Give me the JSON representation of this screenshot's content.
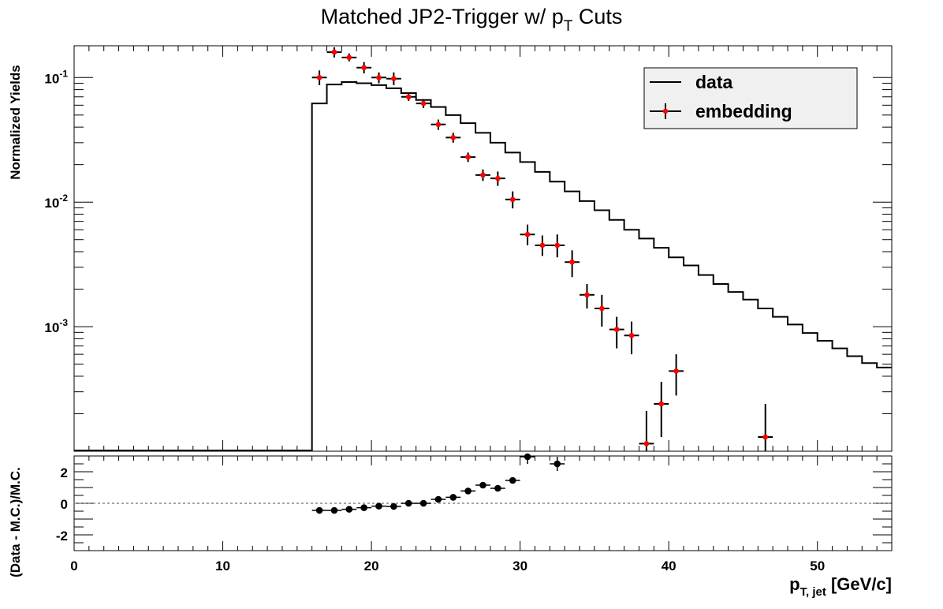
{
  "chart_data": [
    {
      "type": "line",
      "title": "Matched JP2-Trigger w/ p_T Cuts",
      "title_main": "Matched JP2-Trigger w/ p",
      "title_sub": "T",
      "title_tail": " Cuts",
      "ylabel": "Normalized Yields",
      "xlim": [
        0,
        55
      ],
      "ylim": [
        0.0001,
        0.18
      ],
      "yscale": "log",
      "grid": false,
      "legend_position": "top-right",
      "y_ticks": [
        {
          "value": 0.1,
          "base": "10",
          "exp": "-1"
        },
        {
          "value": 0.01,
          "base": "10",
          "exp": "-2"
        },
        {
          "value": 0.001,
          "base": "10",
          "exp": "-3"
        }
      ],
      "series": [
        {
          "name": "data",
          "style": "step",
          "color": "#000000",
          "bin_edges": [
            0,
            1,
            2,
            3,
            4,
            5,
            6,
            7,
            8,
            9,
            10,
            11,
            12,
            13,
            14,
            15,
            16,
            17,
            18,
            19,
            20,
            21,
            22,
            23,
            24,
            25,
            26,
            27,
            28,
            29,
            30,
            31,
            32,
            33,
            34,
            35,
            36,
            37,
            38,
            39,
            40,
            41,
            42,
            43,
            44,
            45,
            46,
            47,
            48,
            49,
            50,
            51,
            52,
            53,
            54,
            55
          ],
          "values": [
            0.0001,
            0.0001,
            0.0001,
            0.0001,
            0.0001,
            0.0001,
            0.0001,
            0.0001,
            0.0001,
            0.0001,
            0.0001,
            0.0001,
            0.0001,
            0.0001,
            0.0001,
            0.0001,
            0.062,
            0.088,
            0.092,
            0.09,
            0.087,
            0.082,
            0.075,
            0.066,
            0.058,
            0.05,
            0.043,
            0.036,
            0.03,
            0.025,
            0.021,
            0.0175,
            0.0146,
            0.0122,
            0.0102,
            0.0086,
            0.0072,
            0.006,
            0.0051,
            0.0043,
            0.0036,
            0.0031,
            0.0026,
            0.0022,
            0.0019,
            0.00165,
            0.0014,
            0.0012,
            0.00104,
            0.00089,
            0.00077,
            0.00067,
            0.00058,
            0.00051,
            0.00047
          ]
        },
        {
          "name": "embedding",
          "style": "markers",
          "color": "#ff0000",
          "points": [
            {
              "x": 16.5,
              "y": 0.1,
              "lo": 0.087,
              "hi": 0.114
            },
            {
              "x": 17.5,
              "y": 0.16,
              "lo": 0.145,
              "hi": 0.175
            },
            {
              "x": 18.5,
              "y": 0.145,
              "lo": 0.135,
              "hi": 0.156
            },
            {
              "x": 19.5,
              "y": 0.12,
              "lo": 0.108,
              "hi": 0.133
            },
            {
              "x": 20.5,
              "y": 0.1,
              "lo": 0.09,
              "hi": 0.11
            },
            {
              "x": 21.5,
              "y": 0.098,
              "lo": 0.087,
              "hi": 0.11
            },
            {
              "x": 22.5,
              "y": 0.07,
              "lo": 0.065,
              "hi": 0.075
            },
            {
              "x": 23.5,
              "y": 0.062,
              "lo": 0.057,
              "hi": 0.067
            },
            {
              "x": 24.5,
              "y": 0.042,
              "lo": 0.038,
              "hi": 0.046
            },
            {
              "x": 25.5,
              "y": 0.033,
              "lo": 0.03,
              "hi": 0.036
            },
            {
              "x": 26.5,
              "y": 0.023,
              "lo": 0.021,
              "hi": 0.025
            },
            {
              "x": 27.5,
              "y": 0.0165,
              "lo": 0.0148,
              "hi": 0.0183
            },
            {
              "x": 28.5,
              "y": 0.0155,
              "lo": 0.0135,
              "hi": 0.0176
            },
            {
              "x": 29.5,
              "y": 0.0105,
              "lo": 0.0089,
              "hi": 0.0122
            },
            {
              "x": 30.5,
              "y": 0.0055,
              "lo": 0.0045,
              "hi": 0.0066
            },
            {
              "x": 31.5,
              "y": 0.0045,
              "lo": 0.0037,
              "hi": 0.0054
            },
            {
              "x": 32.5,
              "y": 0.0045,
              "lo": 0.0036,
              "hi": 0.0055
            },
            {
              "x": 33.5,
              "y": 0.0033,
              "lo": 0.0025,
              "hi": 0.0041
            },
            {
              "x": 34.5,
              "y": 0.0018,
              "lo": 0.0014,
              "hi": 0.0022
            },
            {
              "x": 35.5,
              "y": 0.0014,
              "lo": 0.001,
              "hi": 0.0018
            },
            {
              "x": 36.5,
              "y": 0.00095,
              "lo": 0.00067,
              "hi": 0.0012
            },
            {
              "x": 37.5,
              "y": 0.00085,
              "lo": 0.0006,
              "hi": 0.0011
            },
            {
              "x": 38.5,
              "y": 0.000115,
              "lo": 0.0001,
              "hi": 0.00021
            },
            {
              "x": 39.5,
              "y": 0.00024,
              "lo": 0.00013,
              "hi": 0.00036
            },
            {
              "x": 40.5,
              "y": 0.00044,
              "lo": 0.00028,
              "hi": 0.0006
            },
            {
              "x": 46.5,
              "y": 0.00013,
              "lo": 0.0001,
              "hi": 0.00024
            }
          ]
        }
      ]
    },
    {
      "type": "scatter",
      "ylabel": "(Data - M.C.)/M.C.",
      "xlabel_main": "p",
      "xlabel_sub": "T, jet",
      "xlabel_tail": " [GeV/c]",
      "xlim": [
        0,
        55
      ],
      "ylim": [
        -3,
        3
      ],
      "x_ticks": [
        0,
        10,
        20,
        30,
        40,
        50
      ],
      "y_ticks": [
        -2,
        0,
        2
      ],
      "y_tick_labels": [
        "-2",
        "0",
        "2"
      ],
      "reference_line": 0,
      "grid": false,
      "series": [
        {
          "color": "#000000",
          "points": [
            {
              "x": 16.5,
              "y": -0.45
            },
            {
              "x": 17.5,
              "y": -0.45
            },
            {
              "x": 18.5,
              "y": -0.38
            },
            {
              "x": 19.5,
              "y": -0.28
            },
            {
              "x": 20.5,
              "y": -0.18
            },
            {
              "x": 21.5,
              "y": -0.2
            },
            {
              "x": 22.5,
              "y": 0.0
            },
            {
              "x": 23.5,
              "y": 0.0
            },
            {
              "x": 24.5,
              "y": 0.25
            },
            {
              "x": 25.5,
              "y": 0.38
            },
            {
              "x": 26.5,
              "y": 0.78
            },
            {
              "x": 27.5,
              "y": 1.15
            },
            {
              "x": 28.5,
              "y": 0.95
            },
            {
              "x": 29.5,
              "y": 1.45
            },
            {
              "x": 30.5,
              "y": 2.95
            },
            {
              "x": 32.5,
              "y": 2.5
            }
          ]
        }
      ]
    }
  ]
}
